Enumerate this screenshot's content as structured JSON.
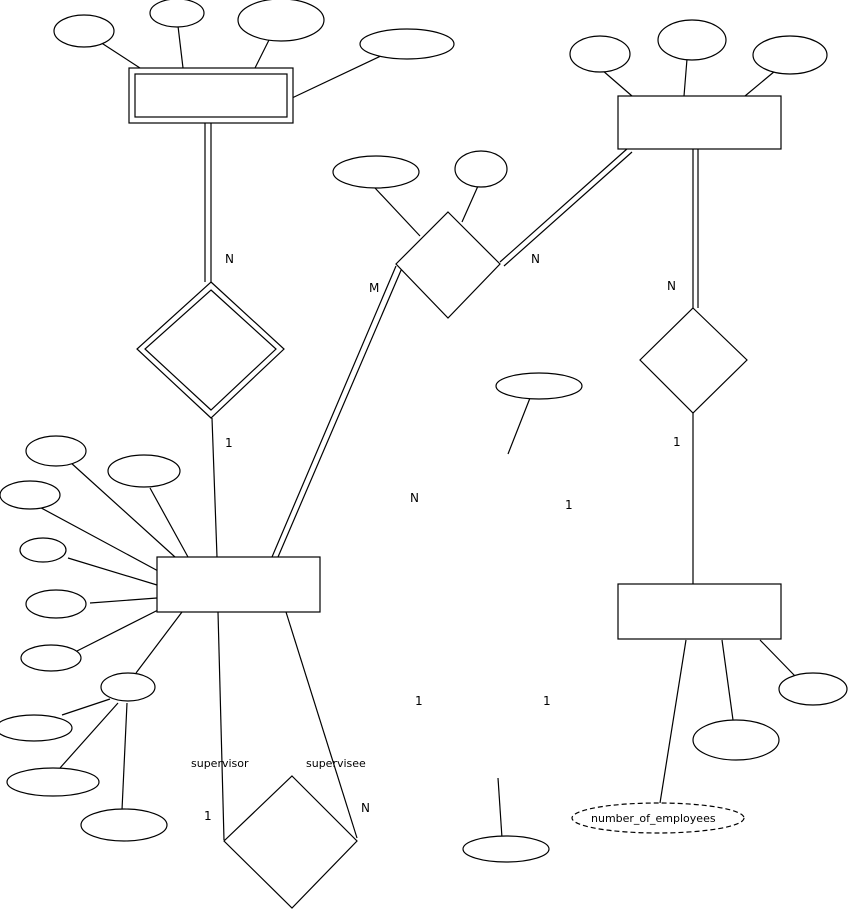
{
  "cardinalities": {
    "c1": "N",
    "c2": "M",
    "c3": "N",
    "c4": "N",
    "c5": "1",
    "c6": "1",
    "c7": "N",
    "c8": "1",
    "c9": "1",
    "c10": "1",
    "c11": "1",
    "c12": "N"
  },
  "roles": {
    "supervisor": "supervisor",
    "supervisee": "supervisee"
  },
  "attributes": {
    "number_of_employees": "number_of_employees"
  }
}
